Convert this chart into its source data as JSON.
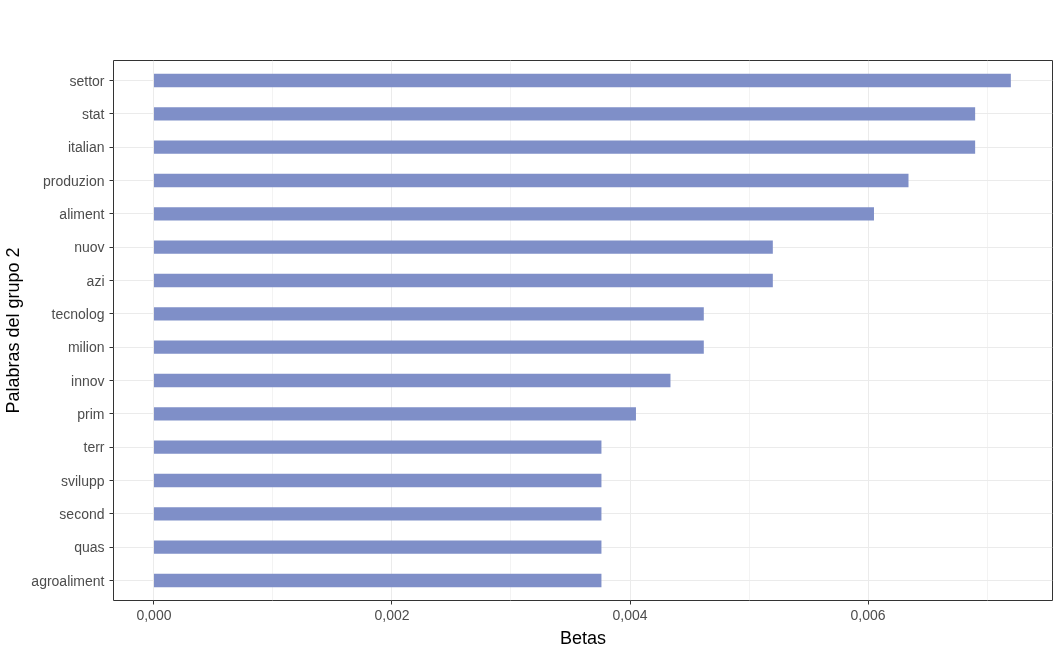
{
  "chart_data": {
    "type": "bar",
    "orientation": "horizontal",
    "xlabel": "Betas",
    "ylabel": "Palabras del grupo 2",
    "categories": [
      "settor",
      "stat",
      "italian",
      "produzion",
      "aliment",
      "nuov",
      "azi",
      "tecnolog",
      "milion",
      "innov",
      "prim",
      "terr",
      "svilupp",
      "second",
      "quas",
      "agroaliment"
    ],
    "values": [
      0.0072,
      0.0069,
      0.0069,
      0.00634,
      0.00605,
      0.0052,
      0.0052,
      0.00462,
      0.00462,
      0.00434,
      0.00405,
      0.00376,
      0.00376,
      0.00376,
      0.00376,
      0.00376
    ],
    "color": "#7f8fc8",
    "xlim": [
      -0.00034,
      0.00755
    ],
    "xticks": [
      {
        "value": 0,
        "label": "0,000"
      },
      {
        "value": 0.002,
        "label": "0,002"
      },
      {
        "value": 0.004,
        "label": "0,004"
      },
      {
        "value": 0.006,
        "label": "0,006"
      }
    ],
    "grid": true
  }
}
